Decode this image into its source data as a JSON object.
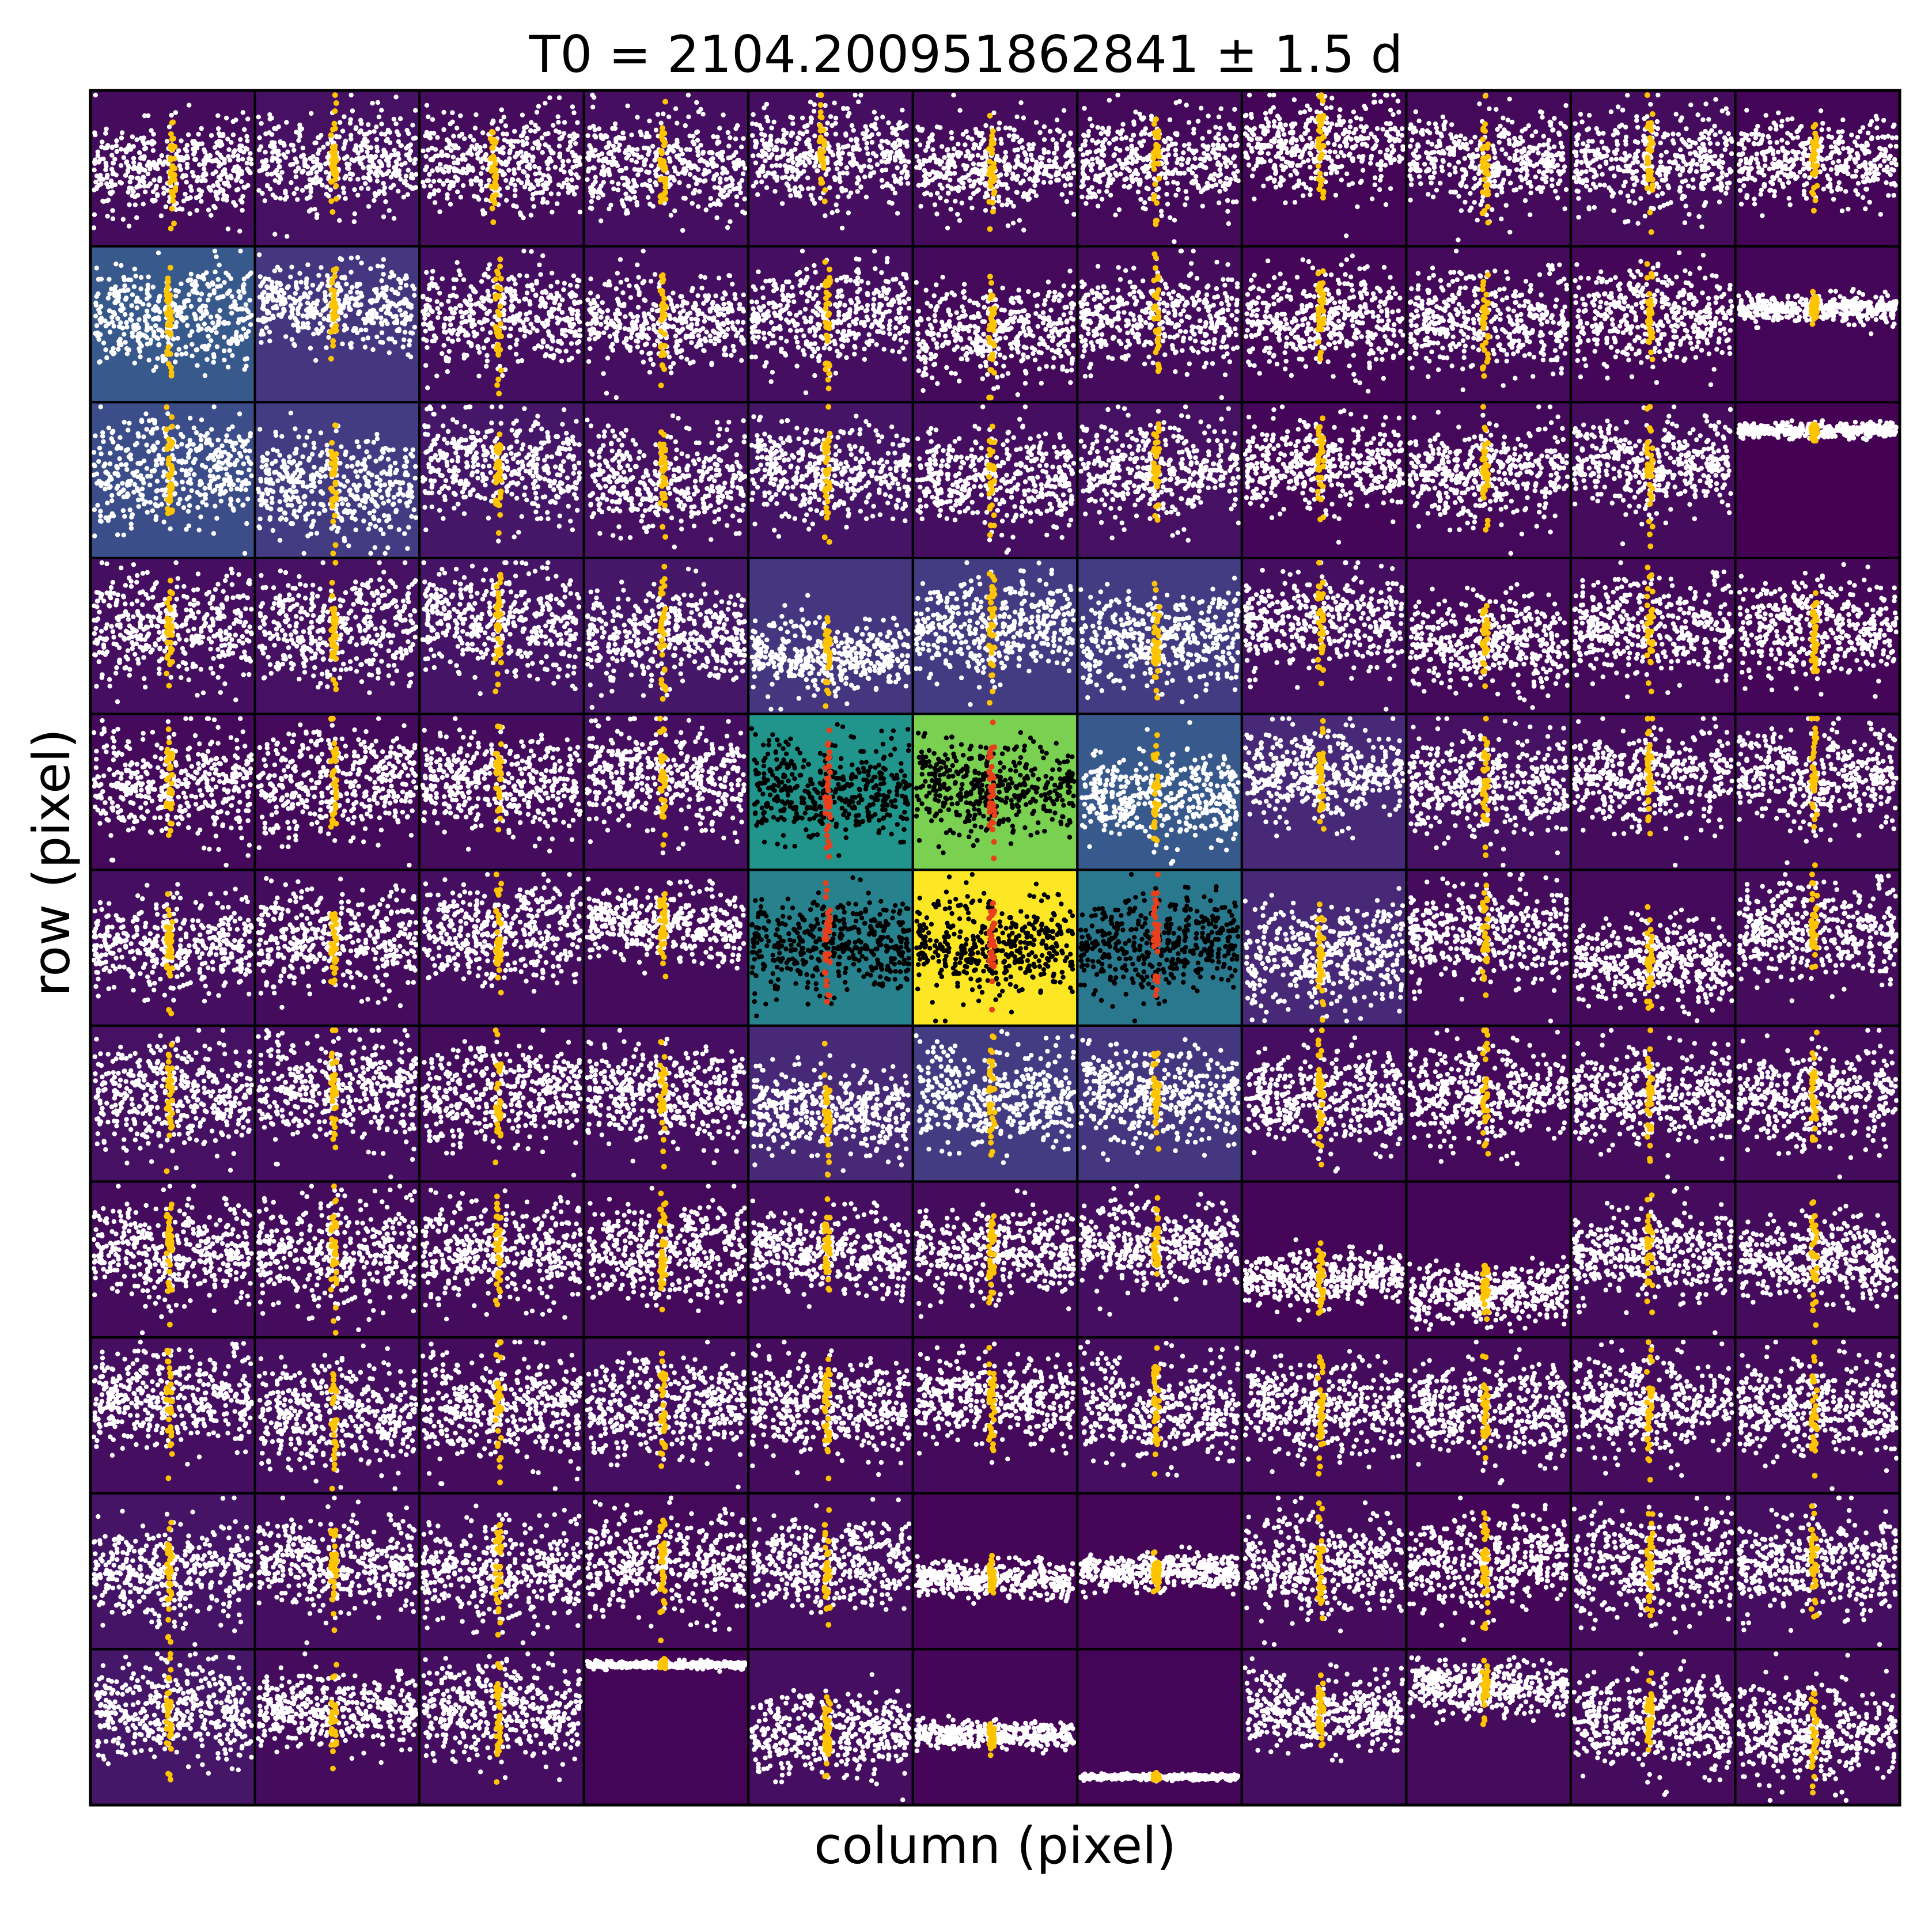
{
  "chart_data": {
    "type": "scatter",
    "title": "T0 = 2104.200951862841 ± 1.5 d",
    "xlabel": "column (pixel)",
    "ylabel": "row (pixel)",
    "grid": {
      "rows": 11,
      "cols": 11
    },
    "colormap": "viridis",
    "colors": {
      "normal_points": "#ffffff",
      "normal_transit": "#ffc400",
      "aperture_points": "#000000",
      "aperture_transit": "#e8401c",
      "cell_border": "#000000"
    },
    "background_levels": [
      [
        0.04,
        0.06,
        0.04,
        0.05,
        0.05,
        0.04,
        0.03,
        0.01,
        0.03,
        0.04,
        0.01
      ],
      [
        0.35,
        0.2,
        0.05,
        0.05,
        0.05,
        0.03,
        0.04,
        0.02,
        0.03,
        0.02,
        0.01
      ],
      [
        0.3,
        0.22,
        0.08,
        0.06,
        0.07,
        0.05,
        0.06,
        0.02,
        0.03,
        0.04,
        0.0
      ],
      [
        0.05,
        0.06,
        0.07,
        0.08,
        0.2,
        0.22,
        0.22,
        0.05,
        0.03,
        0.03,
        0.02
      ],
      [
        0.03,
        0.03,
        0.04,
        0.05,
        0.65,
        0.88,
        0.35,
        0.15,
        0.06,
        0.04,
        0.04
      ],
      [
        0.05,
        0.04,
        0.05,
        0.04,
        0.55,
        1.0,
        0.5,
        0.15,
        0.04,
        0.03,
        0.04
      ],
      [
        0.06,
        0.05,
        0.04,
        0.05,
        0.15,
        0.22,
        0.2,
        0.05,
        0.03,
        0.04,
        0.04
      ],
      [
        0.04,
        0.04,
        0.04,
        0.03,
        0.05,
        0.04,
        0.05,
        0.01,
        0.01,
        0.04,
        0.04
      ],
      [
        0.05,
        0.05,
        0.04,
        0.05,
        0.04,
        0.03,
        0.05,
        0.04,
        0.04,
        0.04,
        0.04
      ],
      [
        0.07,
        0.05,
        0.05,
        0.03,
        0.05,
        0.01,
        0.01,
        0.04,
        0.02,
        0.04,
        0.05
      ],
      [
        0.08,
        0.04,
        0.05,
        0.01,
        0.05,
        0.02,
        0.01,
        0.05,
        0.04,
        0.04,
        0.04
      ]
    ],
    "aperture_cells": [
      [
        4,
        4
      ],
      [
        4,
        5
      ],
      [
        5,
        4
      ],
      [
        5,
        5
      ],
      [
        5,
        6
      ]
    ],
    "band_centers": [
      [
        0.5,
        0.45,
        0.45,
        0.48,
        0.4,
        0.5,
        0.45,
        0.35,
        0.45,
        0.45,
        0.45
      ],
      [
        0.45,
        0.38,
        0.45,
        0.48,
        0.45,
        0.55,
        0.45,
        0.48,
        0.48,
        0.45,
        0.4
      ],
      [
        0.45,
        0.55,
        0.4,
        0.5,
        0.45,
        0.48,
        0.45,
        0.4,
        0.45,
        0.4,
        0.18
      ],
      [
        0.45,
        0.45,
        0.4,
        0.5,
        0.62,
        0.45,
        0.52,
        0.4,
        0.55,
        0.45,
        0.45
      ],
      [
        0.45,
        0.45,
        0.45,
        0.4,
        0.48,
        0.48,
        0.52,
        0.4,
        0.45,
        0.4,
        0.4
      ],
      [
        0.48,
        0.45,
        0.4,
        0.35,
        0.48,
        0.48,
        0.48,
        0.55,
        0.4,
        0.6,
        0.4
      ],
      [
        0.45,
        0.4,
        0.45,
        0.45,
        0.55,
        0.45,
        0.45,
        0.45,
        0.45,
        0.45,
        0.45
      ],
      [
        0.45,
        0.45,
        0.45,
        0.45,
        0.45,
        0.45,
        0.4,
        0.62,
        0.72,
        0.45,
        0.5
      ],
      [
        0.4,
        0.5,
        0.45,
        0.45,
        0.45,
        0.4,
        0.45,
        0.45,
        0.45,
        0.45,
        0.45
      ],
      [
        0.5,
        0.45,
        0.5,
        0.45,
        0.45,
        0.55,
        0.5,
        0.45,
        0.45,
        0.45,
        0.45
      ],
      [
        0.4,
        0.4,
        0.4,
        0.1,
        0.55,
        0.55,
        0.82,
        0.4,
        0.25,
        0.45,
        0.55
      ]
    ],
    "band_spreads": [
      [
        0.5,
        0.55,
        0.55,
        0.55,
        0.55,
        0.5,
        0.55,
        0.55,
        0.55,
        0.55,
        0.45
      ],
      [
        0.55,
        0.45,
        0.55,
        0.5,
        0.55,
        0.5,
        0.55,
        0.55,
        0.55,
        0.55,
        0.15
      ],
      [
        0.6,
        0.6,
        0.55,
        0.55,
        0.55,
        0.55,
        0.55,
        0.5,
        0.55,
        0.55,
        0.08
      ],
      [
        0.6,
        0.6,
        0.6,
        0.55,
        0.4,
        0.55,
        0.5,
        0.55,
        0.5,
        0.55,
        0.55
      ],
      [
        0.6,
        0.6,
        0.55,
        0.55,
        0.55,
        0.55,
        0.5,
        0.5,
        0.6,
        0.55,
        0.6
      ],
      [
        0.5,
        0.55,
        0.55,
        0.4,
        0.55,
        0.55,
        0.55,
        0.55,
        0.55,
        0.45,
        0.55
      ],
      [
        0.6,
        0.6,
        0.55,
        0.55,
        0.45,
        0.55,
        0.55,
        0.55,
        0.55,
        0.55,
        0.55
      ],
      [
        0.6,
        0.6,
        0.55,
        0.55,
        0.45,
        0.5,
        0.45,
        0.3,
        0.3,
        0.5,
        0.45
      ],
      [
        0.55,
        0.6,
        0.6,
        0.55,
        0.55,
        0.45,
        0.55,
        0.55,
        0.55,
        0.55,
        0.55
      ],
      [
        0.55,
        0.55,
        0.55,
        0.55,
        0.5,
        0.2,
        0.2,
        0.55,
        0.55,
        0.55,
        0.55
      ],
      [
        0.55,
        0.4,
        0.55,
        0.04,
        0.45,
        0.15,
        0.03,
        0.4,
        0.3,
        0.55,
        0.55
      ]
    ],
    "transit_position": [
      [
        0.5,
        0.48,
        0.45,
        0.48,
        0.45,
        0.48,
        0.48,
        0.48,
        0.48,
        0.48,
        0.48
      ],
      [
        0.48,
        0.48,
        0.48,
        0.48,
        0.48,
        0.48,
        0.48,
        0.48,
        0.48,
        0.48,
        0.48
      ],
      [
        0.48,
        0.48,
        0.48,
        0.48,
        0.48,
        0.48,
        0.48,
        0.48,
        0.48,
        0.48,
        0.48
      ],
      [
        0.48,
        0.48,
        0.48,
        0.48,
        0.48,
        0.48,
        0.48,
        0.48,
        0.48,
        0.48,
        0.48
      ],
      [
        0.48,
        0.48,
        0.48,
        0.48,
        0.48,
        0.48,
        0.48,
        0.48,
        0.48,
        0.48,
        0.48
      ],
      [
        0.48,
        0.48,
        0.48,
        0.48,
        0.48,
        0.48,
        0.48,
        0.48,
        0.48,
        0.48,
        0.48
      ],
      [
        0.48,
        0.48,
        0.48,
        0.48,
        0.48,
        0.48,
        0.48,
        0.48,
        0.48,
        0.48,
        0.48
      ],
      [
        0.48,
        0.48,
        0.48,
        0.48,
        0.48,
        0.48,
        0.48,
        0.48,
        0.48,
        0.48,
        0.48
      ],
      [
        0.48,
        0.48,
        0.48,
        0.48,
        0.48,
        0.48,
        0.48,
        0.48,
        0.48,
        0.48,
        0.48
      ],
      [
        0.48,
        0.48,
        0.48,
        0.48,
        0.48,
        0.48,
        0.48,
        0.48,
        0.48,
        0.48,
        0.48
      ],
      [
        0.48,
        0.48,
        0.48,
        0.48,
        0.48,
        0.48,
        0.48,
        0.48,
        0.48,
        0.48,
        0.48
      ]
    ]
  }
}
